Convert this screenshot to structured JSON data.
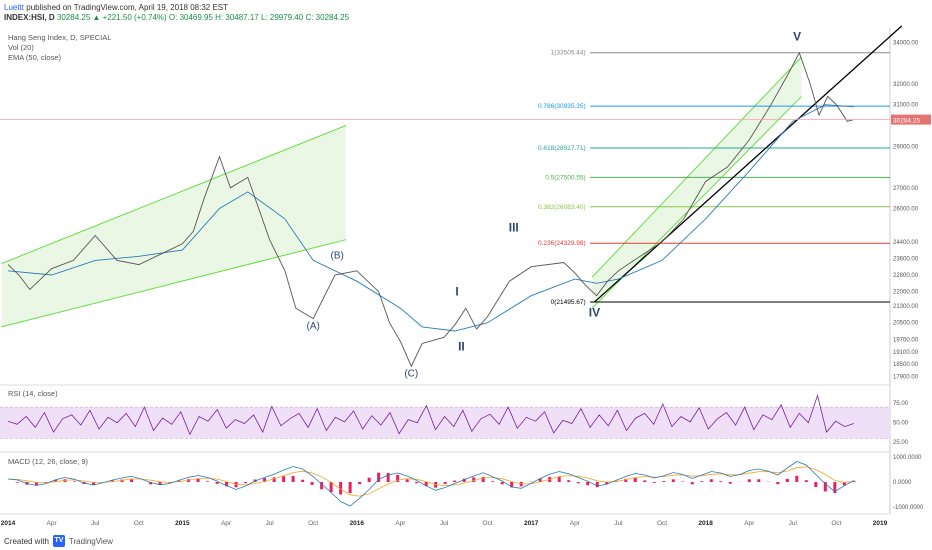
{
  "header": {
    "author": "Luettt",
    "published": "published on TradingView.com, April 19, 2018 08:32 EST",
    "symbol": "INDEX:HSI, D",
    "ohlc": "30284.25 ▲ +221.50 (+0.74%) O: 30469.95 H: 30487.17 L: 29979.40 C: 30284.25"
  },
  "legend": {
    "title": "Hang Seng Index, D, SPECIAL",
    "vol": "Vol (20)",
    "ema": "EMA (50, close)"
  },
  "rsi_label": "RSI (14, close)",
  "macd_label": "MACD (12, 26, close, 9)",
  "footer": {
    "created": "Created with",
    "brand": "TradingView"
  },
  "colors": {
    "price": "#555555",
    "ema": "#2b7bb9",
    "channel": "#66dd44",
    "channel_fill": "#e6f5df",
    "rsi": "#7a1fa2",
    "rsi_band": "#efe0f8",
    "macd": "#2b7bb9",
    "signal": "#f5a623",
    "hist": "#e91e63",
    "wave_label": "#2c4a6e"
  },
  "chart_data": [
    {
      "type": "line",
      "title": "Hang Seng Index, D, SPECIAL",
      "x_ticks": [
        "2014",
        "Apr",
        "Jul",
        "Oct",
        "2015",
        "Apr",
        "Jul",
        "Oct",
        "2016",
        "Apr",
        "Jul",
        "Oct",
        "2017",
        "Apr",
        "Jul",
        "Oct",
        "2018",
        "Apr",
        "Jul",
        "Oct",
        "2019"
      ],
      "y_ticks": [
        34000,
        32000,
        31000,
        29000,
        27000,
        26000,
        24400,
        23600,
        22800,
        22000,
        21300,
        20500,
        19700,
        19100,
        18500,
        17900
      ],
      "ylim": [
        17500,
        34600
      ],
      "current_price": "30284.25",
      "price_path": [
        [
          0,
          23300
        ],
        [
          0.5,
          22800
        ],
        [
          1,
          22100
        ],
        [
          1.5,
          22600
        ],
        [
          2,
          23100
        ],
        [
          3,
          23500
        ],
        [
          4,
          24700
        ],
        [
          5,
          23500
        ],
        [
          6,
          23300
        ],
        [
          7,
          23800
        ],
        [
          8,
          24300
        ],
        [
          8.5,
          24900
        ],
        [
          9,
          26500
        ],
        [
          9.7,
          28500
        ],
        [
          10.2,
          27000
        ],
        [
          11,
          27500
        ],
        [
          11.5,
          26000
        ],
        [
          12,
          24500
        ],
        [
          12.7,
          23000
        ],
        [
          13.2,
          21200
        ],
        [
          14,
          20700
        ],
        [
          15,
          22800
        ],
        [
          16,
          23000
        ],
        [
          17,
          22000
        ],
        [
          17.5,
          20500
        ],
        [
          18,
          19600
        ],
        [
          18.5,
          18400
        ],
        [
          19,
          19500
        ],
        [
          20,
          19800
        ],
        [
          20.5,
          20400
        ],
        [
          21,
          21200
        ],
        [
          21.5,
          20200
        ],
        [
          22,
          20800
        ],
        [
          23,
          22500
        ],
        [
          24,
          23200
        ],
        [
          25.5,
          23400
        ],
        [
          26,
          22900
        ],
        [
          26.5,
          22300
        ],
        [
          27,
          21800
        ],
        [
          27.5,
          22500
        ],
        [
          28,
          23000
        ],
        [
          29,
          23700
        ],
        [
          30,
          24400
        ],
        [
          31,
          25500
        ],
        [
          32,
          27300
        ],
        [
          33,
          28000
        ],
        [
          34,
          29300
        ],
        [
          35,
          31000
        ],
        [
          35.8,
          32500
        ],
        [
          36.3,
          33500
        ],
        [
          36.8,
          32000
        ],
        [
          37.2,
          30500
        ],
        [
          37.6,
          31400
        ],
        [
          38,
          31000
        ],
        [
          38.5,
          30200
        ],
        [
          38.8,
          30284
        ]
      ],
      "ema_path": [
        [
          0,
          23000
        ],
        [
          2,
          22800
        ],
        [
          4,
          23500
        ],
        [
          6,
          23700
        ],
        [
          8,
          24000
        ],
        [
          9.7,
          26000
        ],
        [
          11,
          26800
        ],
        [
          12.7,
          25500
        ],
        [
          14,
          23500
        ],
        [
          16,
          22500
        ],
        [
          18,
          21200
        ],
        [
          19,
          20300
        ],
        [
          20.5,
          20100
        ],
        [
          22,
          20500
        ],
        [
          24,
          21800
        ],
        [
          26,
          22600
        ],
        [
          27,
          22400
        ],
        [
          28,
          22600
        ],
        [
          30,
          23500
        ],
        [
          32,
          25500
        ],
        [
          34,
          27800
        ],
        [
          36,
          30200
        ],
        [
          37.5,
          31000
        ],
        [
          38.8,
          30900
        ]
      ],
      "fibonacci": [
        {
          "label": "1(33505.44)",
          "value": 33505.44,
          "color": "#888888"
        },
        {
          "label": "0.786(30935.35)",
          "value": 30935.35,
          "color": "#2196f3"
        },
        {
          "label": "0.618(28917.71)",
          "value": 28917.71,
          "color": "#26a69a"
        },
        {
          "label": "0.5(27500.55)",
          "value": 27500.55,
          "color": "#4caf50"
        },
        {
          "label": "0.382(26083.40)",
          "value": 26083.4,
          "color": "#8bc34a"
        },
        {
          "label": "0.236(24329.98)",
          "value": 24329.98,
          "color": "#e53935"
        },
        {
          "label": "0(21495.67)",
          "value": 21495.67,
          "color": "#000000"
        }
      ],
      "waves": [
        {
          "label": "(A)",
          "x": 14,
          "y": 20200
        },
        {
          "label": "(B)",
          "x": 15.1,
          "y": 23600
        },
        {
          "label": "(C)",
          "x": 18.5,
          "y": 17900
        },
        {
          "label": "I",
          "x": 20.6,
          "y": 21800
        },
        {
          "label": "II",
          "x": 20.8,
          "y": 19150
        },
        {
          "label": "III",
          "x": 23.2,
          "y": 24900
        },
        {
          "label": "IV",
          "x": 26.9,
          "y": 20800
        },
        {
          "label": "V",
          "x": 36.2,
          "y": 34100
        }
      ]
    },
    {
      "type": "line",
      "title": "RSI (14, close)",
      "y_ticks": [
        75,
        50,
        25
      ],
      "ylim": [
        15,
        92
      ],
      "band": [
        30,
        70
      ],
      "values": [
        52,
        48,
        58,
        44,
        63,
        38,
        55,
        60,
        47,
        66,
        42,
        57,
        50,
        62,
        45,
        70,
        40,
        56,
        48,
        64,
        35,
        58,
        52,
        67,
        43,
        54,
        49,
        60,
        38,
        71,
        46,
        55,
        62,
        44,
        68,
        40,
        57,
        51,
        65,
        42,
        59,
        47,
        63,
        36,
        54,
        50,
        72,
        41,
        58,
        45,
        66,
        39,
        55,
        61,
        48,
        70,
        43,
        57,
        52,
        64,
        37,
        53,
        49,
        68,
        44,
        60,
        46,
        66,
        40,
        56,
        62,
        48,
        74,
        45,
        58,
        51,
        69,
        42,
        55,
        63,
        47,
        70,
        41,
        60,
        54,
        73,
        44,
        62,
        50,
        85,
        38,
        52,
        45,
        49
      ]
    },
    {
      "type": "bar",
      "title": "MACD (12, 26, close, 9)",
      "y_ticks": [
        "1000.0000",
        "0.0000",
        "-1000.0000"
      ],
      "ylim": [
        -1200,
        1200
      ],
      "macd": [
        120,
        80,
        -60,
        -140,
        -60,
        90,
        180,
        110,
        -40,
        -120,
        -30,
        80,
        160,
        230,
        120,
        -20,
        -110,
        -60,
        70,
        190,
        260,
        180,
        40,
        -150,
        -300,
        -160,
        40,
        180,
        310,
        480,
        620,
        520,
        250,
        -80,
        -420,
        -780,
        -960,
        -650,
        -300,
        100,
        280,
        360,
        240,
        60,
        -150,
        -330,
        -220,
        -60,
        90,
        240,
        370,
        210,
        40,
        -200,
        -250,
        -60,
        140,
        310,
        420,
        330,
        180,
        30,
        -160,
        -90,
        70,
        220,
        340,
        280,
        160,
        250,
        380,
        300,
        140,
        280,
        420,
        360,
        220,
        300,
        460,
        520,
        430,
        280,
        560,
        820,
        680,
        300,
        -80,
        -380,
        -150,
        60
      ]
    }
  ]
}
